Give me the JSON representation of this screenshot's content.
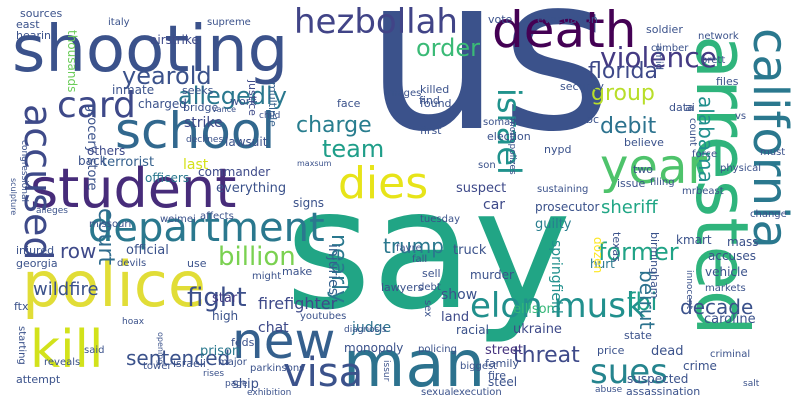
{
  "words": [
    {
      "text": "us",
      "color": "#3b528b"
    },
    {
      "text": "say",
      "color": "#21a585"
    },
    {
      "text": "shooting",
      "color": "#3b528b"
    },
    {
      "text": "police",
      "color": "#e1dd37"
    },
    {
      "text": "arrested",
      "color": "#2fb47c"
    },
    {
      "text": "student",
      "color": "#472c7a"
    },
    {
      "text": "school",
      "color": "#31688e"
    },
    {
      "text": "death",
      "color": "#440154"
    },
    {
      "text": "california",
      "color": "#2a788e"
    },
    {
      "text": "man",
      "color": "#2c728e"
    },
    {
      "text": "new",
      "color": "#35608d"
    },
    {
      "text": "kill",
      "color": "#d2e21b"
    },
    {
      "text": "year",
      "color": "#4ec36b"
    },
    {
      "text": "dies",
      "color": "#e7e419"
    },
    {
      "text": "hezbollah",
      "color": "#414487"
    },
    {
      "text": "department",
      "color": "#2a788e"
    },
    {
      "text": "visa",
      "color": "#3b528b"
    },
    {
      "text": "accused",
      "color": "#3e4a89"
    },
    {
      "text": "card",
      "color": "#3e4989"
    },
    {
      "text": "elon musk",
      "color": "#21908d"
    },
    {
      "text": "israel",
      "color": "#20928c"
    },
    {
      "text": "sues",
      "color": "#25848e"
    },
    {
      "text": "yearold",
      "color": "#3b528b"
    },
    {
      "text": "violence",
      "color": "#443a83"
    },
    {
      "text": "florida",
      "color": "#3e4989"
    },
    {
      "text": "allegedly",
      "color": "#2a788e"
    },
    {
      "text": "order",
      "color": "#3aba76"
    },
    {
      "text": "charge",
      "color": "#287d8e"
    },
    {
      "text": "group",
      "color": "#b8de29"
    },
    {
      "text": "debit",
      "color": "#2c728e"
    },
    {
      "text": "team",
      "color": "#1f9e89"
    },
    {
      "text": "alabama",
      "color": "#21908d"
    },
    {
      "text": "former",
      "color": "#20a386"
    },
    {
      "text": "court",
      "color": "#2f6c8e"
    },
    {
      "text": "billion",
      "color": "#7ad151"
    },
    {
      "text": "trump",
      "color": "#2a788e"
    },
    {
      "text": "fight",
      "color": "#3c4f8a"
    },
    {
      "text": "threat",
      "color": "#3e4a89"
    },
    {
      "text": "fbi",
      "color": "#1f9e89"
    },
    {
      "text": "sentenced",
      "color": "#3b528b"
    },
    {
      "text": "nearly",
      "color": "#2a788e"
    },
    {
      "text": "beirut",
      "color": "#2c728e"
    },
    {
      "text": "sheriff",
      "color": "#21a685"
    },
    {
      "text": "decade",
      "color": "#3b528b"
    },
    {
      "text": "firefighter",
      "color": "#3e4989"
    },
    {
      "text": "wildfire",
      "color": "#3b528b"
    },
    {
      "text": "row",
      "color": "#3e4989"
    },
    {
      "text": "judge",
      "color": "#2c728e"
    },
    {
      "text": "monopoly",
      "color": "#3b528b"
    },
    {
      "text": "street",
      "color": "#46337e"
    },
    {
      "text": "ukraine",
      "color": "#3e4a89"
    },
    {
      "text": "ellison",
      "color": "#35b779"
    },
    {
      "text": "springfield",
      "color": "#21908d"
    },
    {
      "text": "ship",
      "color": "#3b528b"
    },
    {
      "text": "prison",
      "color": "#2a788e"
    },
    {
      "text": "chat",
      "color": "#3e4a89"
    },
    {
      "text": "high",
      "color": "#3b528b"
    },
    {
      "text": "star",
      "color": "#443b84"
    },
    {
      "text": "land",
      "color": "#3e4a89"
    },
    {
      "text": "show",
      "color": "#3b528b"
    },
    {
      "text": "injuries",
      "color": "#34608d"
    },
    {
      "text": "murder",
      "color": "#3b528b"
    },
    {
      "text": "truck",
      "color": "#3b528b"
    },
    {
      "text": "guilty",
      "color": "#287d8e"
    },
    {
      "text": "hurt",
      "color": "#2a788e"
    },
    {
      "text": "dozen",
      "color": "#fde725"
    },
    {
      "text": "prosecutor",
      "color": "#3b528b"
    },
    {
      "text": "car",
      "color": "#3e4a89"
    },
    {
      "text": "suspect",
      "color": "#3e4989"
    },
    {
      "text": "everything",
      "color": "#3b528b"
    },
    {
      "text": "signs",
      "color": "#3b528b"
    },
    {
      "text": "commander",
      "color": "#3e4a89"
    },
    {
      "text": "terrorist",
      "color": "#35608d"
    },
    {
      "text": "grocery store",
      "color": "#3b528b"
    },
    {
      "text": "officers",
      "color": "#2a788e"
    },
    {
      "text": "strike",
      "color": "#3e4a89"
    },
    {
      "text": "charged",
      "color": "#3b528b"
    },
    {
      "text": "bridge",
      "color": "#3b528b"
    },
    {
      "text": "inmate",
      "color": "#3b528b"
    },
    {
      "text": "seeks",
      "color": "#3b528b"
    },
    {
      "text": "work",
      "color": "#3b528b"
    },
    {
      "text": "justice",
      "color": "#3e4a89"
    },
    {
      "text": "multiple",
      "color": "#35608d"
    },
    {
      "text": "lawsuit",
      "color": "#3b528b"
    },
    {
      "text": "others",
      "color": "#3e4a89"
    },
    {
      "text": "back",
      "color": "#3b528b"
    },
    {
      "text": "last",
      "color": "#d5e21a"
    },
    {
      "text": "airstrike",
      "color": "#3e4a89"
    },
    {
      "text": "thousands",
      "color": "#6ccd5a"
    },
    {
      "text": "sources",
      "color": "#3b528b"
    },
    {
      "text": "east",
      "color": "#3b528b"
    },
    {
      "text": "hearing",
      "color": "#3b528b"
    },
    {
      "text": "italy",
      "color": "#3b528b"
    },
    {
      "text": "supreme",
      "color": "#3b528b"
    },
    {
      "text": "face",
      "color": "#3b528b"
    },
    {
      "text": "images",
      "color": "#3b528b"
    },
    {
      "text": "vote",
      "color": "#3b528b"
    },
    {
      "text": "evacuation",
      "color": "#3b528b"
    },
    {
      "text": "soldier",
      "color": "#3b528b"
    },
    {
      "text": "network",
      "color": "#3b528b"
    },
    {
      "text": "climber",
      "color": "#3b528b"
    },
    {
      "text": "brett",
      "color": "#3b528b"
    },
    {
      "text": "amid",
      "color": "#3b528b"
    },
    {
      "text": "files",
      "color": "#3b528b"
    },
    {
      "text": "killed",
      "color": "#3b528b"
    },
    {
      "text": "found",
      "color": "#3b528b"
    },
    {
      "text": "find",
      "color": "#3b528b"
    },
    {
      "text": "security",
      "color": "#3b528b"
    },
    {
      "text": "somali",
      "color": "#3b528b"
    },
    {
      "text": "bc",
      "color": "#3b528b"
    },
    {
      "text": "data",
      "color": "#3b528b"
    },
    {
      "text": "ai",
      "color": "#3b528b"
    },
    {
      "text": "first",
      "color": "#3b528b"
    },
    {
      "text": "election",
      "color": "#3b528b"
    },
    {
      "text": "nypd",
      "color": "#3b528b"
    },
    {
      "text": "believe",
      "color": "#3b528b"
    },
    {
      "text": "count",
      "color": "#3b528b"
    },
    {
      "text": "vs",
      "color": "#3b528b"
    },
    {
      "text": "must",
      "color": "#3b528b"
    },
    {
      "text": "physical",
      "color": "#3b528b"
    },
    {
      "text": "two",
      "color": "#3b528b"
    },
    {
      "text": "issue",
      "color": "#3b528b"
    },
    {
      "text": "force",
      "color": "#3b528b"
    },
    {
      "text": "filing",
      "color": "#3b528b"
    },
    {
      "text": "mrbeast",
      "color": "#3b528b"
    },
    {
      "text": "monopolizes",
      "color": "#3b528b"
    },
    {
      "text": "son",
      "color": "#3b528b"
    },
    {
      "text": "tuesday",
      "color": "#3b528b"
    },
    {
      "text": "sustaining",
      "color": "#3b528b"
    },
    {
      "text": "kmart",
      "color": "#3b528b"
    },
    {
      "text": "mass",
      "color": "#3b528b"
    },
    {
      "text": "accuses",
      "color": "#3b528b"
    },
    {
      "text": "vehicle",
      "color": "#3b528b"
    },
    {
      "text": "birmingham",
      "color": "#3b528b"
    },
    {
      "text": "change",
      "color": "#3b528b"
    },
    {
      "text": "texas",
      "color": "#3b528b"
    },
    {
      "text": "markets",
      "color": "#3b528b"
    },
    {
      "text": "caroline",
      "color": "#3b528b"
    },
    {
      "text": "criminal",
      "color": "#3b528b"
    },
    {
      "text": "innocent",
      "color": "#3b528b"
    },
    {
      "text": "state",
      "color": "#3b528b"
    },
    {
      "text": "price",
      "color": "#3b528b"
    },
    {
      "text": "dead",
      "color": "#3b528b"
    },
    {
      "text": "crime",
      "color": "#3b528b"
    },
    {
      "text": "suspected",
      "color": "#3b528b"
    },
    {
      "text": "assassination",
      "color": "#3b528b"
    },
    {
      "text": "fire",
      "color": "#3b528b"
    },
    {
      "text": "family",
      "color": "#3b528b"
    },
    {
      "text": "steel",
      "color": "#3b528b"
    },
    {
      "text": "racial",
      "color": "#3b528b"
    },
    {
      "text": "policing",
      "color": "#3b528b"
    },
    {
      "text": "sex",
      "color": "#3b528b"
    },
    {
      "text": "biggest",
      "color": "#3b528b"
    },
    {
      "text": "sell",
      "color": "#3b528b"
    },
    {
      "text": "debt",
      "color": "#3b528b"
    },
    {
      "text": "lawyers",
      "color": "#3b528b"
    },
    {
      "text": "fall",
      "color": "#3b528b"
    },
    {
      "text": "favre",
      "color": "#3b528b"
    },
    {
      "text": "youtubes",
      "color": "#3b528b"
    },
    {
      "text": "might",
      "color": "#3b528b"
    },
    {
      "text": "make",
      "color": "#3b528b"
    },
    {
      "text": "feds",
      "color": "#3b528b"
    },
    {
      "text": "israeli",
      "color": "#3b528b"
    },
    {
      "text": "major",
      "color": "#3b528b"
    },
    {
      "text": "parkinsons",
      "color": "#3b528b"
    },
    {
      "text": "use",
      "color": "#3b528b"
    },
    {
      "text": "official",
      "color": "#3b528b"
    },
    {
      "text": "devils",
      "color": "#3b528b"
    },
    {
      "text": "georgia",
      "color": "#3b528b"
    },
    {
      "text": "injured",
      "color": "#3b528b"
    },
    {
      "text": "missouri",
      "color": "#3b528b"
    },
    {
      "text": "weimei",
      "color": "#3b528b"
    },
    {
      "text": "affects",
      "color": "#3b528b"
    },
    {
      "text": "alleges",
      "color": "#3b528b"
    },
    {
      "text": "congressional",
      "color": "#3b528b"
    },
    {
      "text": "sculpture",
      "color": "#3b528b"
    },
    {
      "text": "declines",
      "color": "#3b528b"
    },
    {
      "text": "vance",
      "color": "#3b528b"
    },
    {
      "text": "child",
      "color": "#3b528b"
    },
    {
      "text": "maxsum",
      "color": "#3b528b"
    },
    {
      "text": "ftx",
      "color": "#3b528b"
    },
    {
      "text": "reveals",
      "color": "#3b528b"
    },
    {
      "text": "starting",
      "color": "#3b528b"
    },
    {
      "text": "said",
      "color": "#3b528b"
    },
    {
      "text": "tower",
      "color": "#3b528b"
    },
    {
      "text": "attempt",
      "color": "#3b528b"
    },
    {
      "text": "hoax",
      "color": "#3b528b"
    },
    {
      "text": "opening",
      "color": "#3b528b"
    },
    {
      "text": "diagnosis",
      "color": "#3b528b"
    },
    {
      "text": "exhibition",
      "color": "#3b528b"
    },
    {
      "text": "execution",
      "color": "#3b528b"
    },
    {
      "text": "sexual",
      "color": "#3b528b"
    },
    {
      "text": "page",
      "color": "#3b528b"
    },
    {
      "text": "rises",
      "color": "#3b528b"
    },
    {
      "text": "issur",
      "color": "#3b528b"
    },
    {
      "text": "abuse",
      "color": "#3b528b"
    },
    {
      "text": "salt",
      "color": "#3b528b"
    }
  ]
}
